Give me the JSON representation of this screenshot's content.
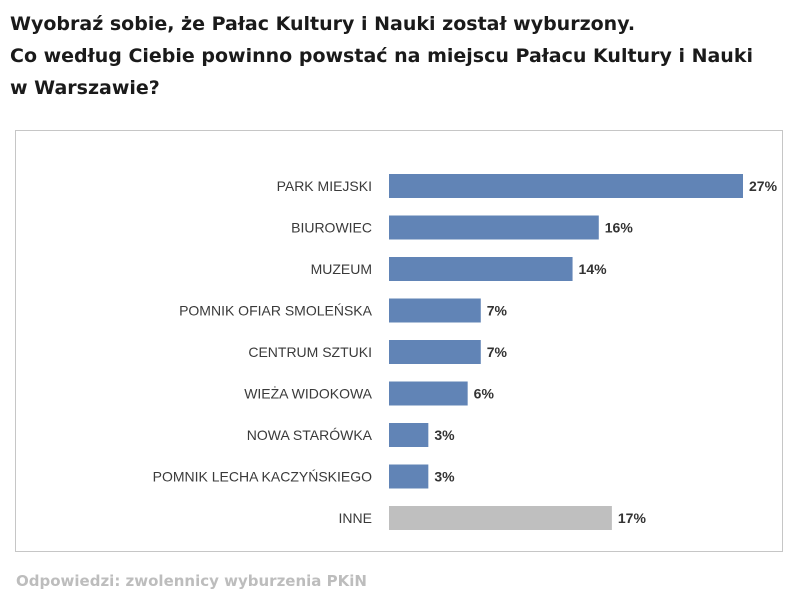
{
  "title_lines": [
    "Wyobraź sobie, że Pałac Kultury i Nauki został wyburzony.",
    "Co według Ciebie powinno powstać na miejscu Pałacu Kultury i Nauki",
    "w Warszawie?"
  ],
  "footnote": "Odpowiedzi: zwolennicy wyburzenia PKiN",
  "colors": {
    "bar": "#6184b6",
    "bar_other": "#bfbfbf",
    "label": "#3a3a3a"
  },
  "chart_data": {
    "type": "bar",
    "orientation": "horizontal",
    "categories": [
      "PARK MIEJSKI",
      "BIUROWIEC",
      "MUZEUM",
      "POMNIK OFIAR SMOLEŃSKA",
      "CENTRUM SZTUKI",
      "WIEŻA WIDOKOWA",
      "NOWA STARÓWKA",
      "POMNIK LECHA KACZYŃSKIEGO",
      "INNE"
    ],
    "values": [
      27,
      16,
      14,
      7,
      7,
      6,
      3,
      3,
      17
    ],
    "value_labels": [
      "27%",
      "16%",
      "14%",
      "7%",
      "7%",
      "6%",
      "3%",
      "3%",
      "17%"
    ],
    "highlight": [
      false,
      false,
      false,
      false,
      false,
      false,
      false,
      false,
      true
    ],
    "unit": "%",
    "xlim": [
      0,
      27
    ],
    "grid": false,
    "legend": "none"
  }
}
